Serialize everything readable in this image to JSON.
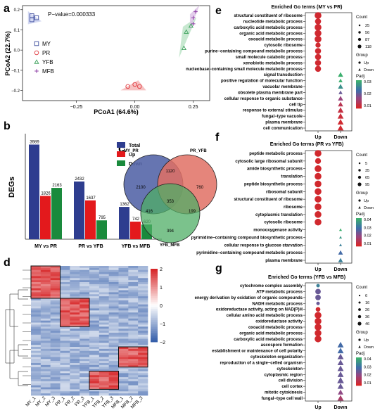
{
  "panels": {
    "a": "a",
    "b": "b",
    "c": "c",
    "d": "d",
    "e": "e",
    "f": "f",
    "g": "g"
  },
  "panel_a": {
    "pvalue": "P−value=0.000333",
    "xlabel": "PCoA1 (64.6%)",
    "ylabel": "PCoA2 (22.7%)",
    "xticks": [
      "−0.25",
      "0.00",
      "0.25"
    ],
    "yticks": [
      "0.2",
      "0.1",
      "0.0",
      "−0.1",
      "−0.2"
    ],
    "legend": [
      {
        "label": "MY",
        "color": "#3a4a9c",
        "shape": "square"
      },
      {
        "label": "PR",
        "color": "#e0393e",
        "shape": "circle"
      },
      {
        "label": "YFB",
        "color": "#3aa05a",
        "shape": "triangle"
      },
      {
        "label": "MFB",
        "color": "#8e3ea5",
        "shape": "plus"
      }
    ]
  },
  "chart_data": [
    {
      "type": "scatter",
      "xlabel": "PCoA1 (64.6%)",
      "ylabel": "PCoA2 (22.7%)",
      "xlim": [
        -0.48,
        0.32
      ],
      "ylim": [
        -0.25,
        0.22
      ],
      "series": [
        {
          "name": "MY",
          "points": [
            [
              -0.44,
              0.17
            ],
            [
              -0.42,
              0.16
            ],
            [
              -0.44,
              0.15
            ]
          ]
        },
        {
          "name": "PR",
          "points": [
            [
              -0.03,
              -0.18
            ],
            [
              0.0,
              -0.17
            ],
            [
              0.02,
              -0.18
            ]
          ]
        },
        {
          "name": "YFB",
          "points": [
            [
              0.22,
              0.09
            ],
            [
              0.24,
              0.12
            ],
            [
              0.21,
              0.01
            ]
          ]
        },
        {
          "name": "MFB",
          "points": [
            [
              0.26,
              0.19
            ],
            [
              0.25,
              0.16
            ],
            [
              0.25,
              0.13
            ]
          ]
        }
      ]
    },
    {
      "type": "bar",
      "ylabel": "DEGs",
      "categories": [
        "MY vs PR",
        "PR vs YFB",
        "YFB vs MFB"
      ],
      "ylim": [
        0,
        4300
      ],
      "series": [
        {
          "name": "Total",
          "color": "#2e3d8f",
          "values": [
            3989,
            2432,
            1362
          ]
        },
        {
          "name": "Up",
          "color": "#e3191c",
          "values": [
            1826,
            1637,
            742
          ]
        },
        {
          "name": "Down",
          "color": "#1a8a3c",
          "values": [
            2163,
            795,
            620
          ]
        }
      ]
    }
  ],
  "venn": {
    "sets": [
      "MY_PR",
      "PR_YFB",
      "YFB_MFB"
    ],
    "regions": {
      "a_only": "2100",
      "b_only": "760",
      "c_only": "394",
      "ab": "1120",
      "ac": "416",
      "bc": "199",
      "abc": "353"
    }
  },
  "heatmap": {
    "columns": [
      "MY_1",
      "MY_2",
      "MY_3",
      "PR_1",
      "PR_2",
      "PR_3",
      "YFB_1",
      "YFB_2",
      "YFB_3",
      "MFB_1",
      "MFB_2",
      "MFB_3"
    ],
    "scale": [
      "2",
      "1",
      "0",
      "−1",
      "−2"
    ]
  },
  "dot_common": {
    "xcats": [
      "Up",
      "Down"
    ],
    "count_title": "Count",
    "group_title": "Group",
    "padj_title": "Padj",
    "group_up": "Up",
    "group_down": "Down"
  },
  "panel_e": {
    "title": "Enriched Go terms (MY vs PR)",
    "count_ticks": [
      "25",
      "56",
      "87",
      "118"
    ],
    "padj_ticks": [
      "0.03",
      "0.02",
      "0.01"
    ],
    "terms": [
      {
        "label": "structural constituent of ribosome",
        "group": "Up",
        "size": 118,
        "padj": 0.001
      },
      {
        "label": "nucleotide metabolic process",
        "group": "Up",
        "size": 87,
        "padj": 0.001
      },
      {
        "label": "carboxylic acid metabolic process",
        "group": "Up",
        "size": 118,
        "padj": 0.001
      },
      {
        "label": "organic acid metabolic process",
        "group": "Up",
        "size": 118,
        "padj": 0.001
      },
      {
        "label": "oxoacid metabolic process",
        "group": "Up",
        "size": 118,
        "padj": 0.001
      },
      {
        "label": "cytosolic ribosome",
        "group": "Up",
        "size": 56,
        "padj": 0.001
      },
      {
        "label": "purine−containing compound metabolic process",
        "group": "Up",
        "size": 87,
        "padj": 0.001
      },
      {
        "label": "small molecule catabolic process",
        "group": "Up",
        "size": 87,
        "padj": 0.001
      },
      {
        "label": "xenobiotic metabolic process",
        "group": "Up",
        "size": 87,
        "padj": 0.001
      },
      {
        "label": "nucleobase−containing small molecule metabolic process",
        "group": "Up",
        "size": 87,
        "padj": 0.001
      },
      {
        "label": "signal transduction",
        "group": "Down",
        "size": 56,
        "padj": 0.03
      },
      {
        "label": "positive regulation of molecular function",
        "group": "Down",
        "size": 25,
        "padj": 0.03
      },
      {
        "label": "vacuolar membrane",
        "group": "Down",
        "size": 56,
        "padj": 0.025
      },
      {
        "label": "obsolete plasma membrane part",
        "group": "Down",
        "size": 25,
        "padj": 0.015
      },
      {
        "label": "cellular response to organic substance",
        "group": "Down",
        "size": 56,
        "padj": 0.01
      },
      {
        "label": "cell tip",
        "group": "Down",
        "size": 56,
        "padj": 0.005
      },
      {
        "label": "response to external stimulus",
        "group": "Down",
        "size": 87,
        "padj": 0.003
      },
      {
        "label": "fungal−type vacuole",
        "group": "Down",
        "size": 87,
        "padj": 0.002
      },
      {
        "label": "plasma membrane",
        "group": "Down",
        "size": 87,
        "padj": 0.001
      },
      {
        "label": "cell communication",
        "group": "Down",
        "size": 87,
        "padj": 0.001
      }
    ]
  },
  "panel_f": {
    "title": "Enriched Go terms (PR vs YFB)",
    "count_ticks": [
      "5",
      "35",
      "65",
      "95"
    ],
    "padj_ticks": [
      "0.04",
      "0.03",
      "0.02",
      "0.01"
    ],
    "terms": [
      {
        "label": "peptide metabolic process",
        "group": "Up",
        "size": 95,
        "padj": 0.001
      },
      {
        "label": "cytosolic large ribosomal subunit",
        "group": "Up",
        "size": 65,
        "padj": 0.001
      },
      {
        "label": "amide biosynthetic process",
        "group": "Up",
        "size": 95,
        "padj": 0.001
      },
      {
        "label": "translation",
        "group": "Up",
        "size": 95,
        "padj": 0.001
      },
      {
        "label": "peptide biosynthetic process",
        "group": "Up",
        "size": 95,
        "padj": 0.001
      },
      {
        "label": "ribosomal subunit",
        "group": "Up",
        "size": 95,
        "padj": 0.001
      },
      {
        "label": "structural constituent of ribosome",
        "group": "Up",
        "size": 95,
        "padj": 0.001
      },
      {
        "label": "ribosome",
        "group": "Up",
        "size": 95,
        "padj": 0.001
      },
      {
        "label": "cytoplasmic translation",
        "group": "Up",
        "size": 95,
        "padj": 0.001
      },
      {
        "label": "cytosolic ribosome",
        "group": "Up",
        "size": 95,
        "padj": 0.001
      },
      {
        "label": "monooxygenase activity",
        "group": "Down",
        "size": 5,
        "padj": 0.04
      },
      {
        "label": "pyrimidine−containing compound biosynthetic process",
        "group": "Down",
        "size": 5,
        "padj": 0.035
      },
      {
        "label": "cellular response to glucose starvation",
        "group": "Down",
        "size": 5,
        "padj": 0.03
      },
      {
        "label": "pyrimidine−containing compound metabolic process",
        "group": "Down",
        "size": 35,
        "padj": 0.025
      },
      {
        "label": "plasma membrane",
        "group": "Down",
        "size": 35,
        "padj": 0.03
      }
    ]
  },
  "panel_g": {
    "title": "Enriched Go terms (YFB vs MFB)",
    "count_ticks": [
      "6",
      "16",
      "26",
      "36",
      "46"
    ],
    "padj_ticks": [
      "0.04",
      "0.03",
      "0.02",
      "0.01"
    ],
    "terms": [
      {
        "label": "cytochrome complex assembly",
        "group": "Up",
        "size": 6,
        "padj": 0.03
      },
      {
        "label": "ATP metabolic process",
        "group": "Up",
        "size": 26,
        "padj": 0.02
      },
      {
        "label": "energy derivation by oxidation of organic compounds",
        "group": "Up",
        "size": 26,
        "padj": 0.02
      },
      {
        "label": "NADH metabolic process",
        "group": "Up",
        "size": 6,
        "padj": 0.02
      },
      {
        "label": "oxidoreductase activity, acting on NAD(P)H",
        "group": "Up",
        "size": 16,
        "padj": 0.001
      },
      {
        "label": "cellular amino acid metabolic process",
        "group": "Up",
        "size": 46,
        "padj": 0.001
      },
      {
        "label": "oxidoreductase activity",
        "group": "Up",
        "size": 46,
        "padj": 0.001
      },
      {
        "label": "oxoacid metabolic process",
        "group": "Up",
        "size": 46,
        "padj": 0.001
      },
      {
        "label": "organic acid metabolic process",
        "group": "Up",
        "size": 46,
        "padj": 0.001
      },
      {
        "label": "carboxylic acid metabolic process",
        "group": "Up",
        "size": 46,
        "padj": 0.001
      },
      {
        "label": "ascospore formation",
        "group": "Down",
        "size": 36,
        "padj": 0.025
      },
      {
        "label": "establishment or maintenance of cell polarity",
        "group": "Down",
        "size": 36,
        "padj": 0.025
      },
      {
        "label": "cytoskeleton organization",
        "group": "Down",
        "size": 36,
        "padj": 0.02
      },
      {
        "label": "reproduction of a single−celled organism",
        "group": "Down",
        "size": 36,
        "padj": 0.02
      },
      {
        "label": "cytoskeleton",
        "group": "Down",
        "size": 36,
        "padj": 0.02
      },
      {
        "label": "cytoplasmic region",
        "group": "Down",
        "size": 36,
        "padj": 0.02
      },
      {
        "label": "cell division",
        "group": "Down",
        "size": 46,
        "padj": 0.02
      },
      {
        "label": "cell cortex",
        "group": "Down",
        "size": 36,
        "padj": 0.02
      },
      {
        "label": "mitotic cytokinesis",
        "group": "Down",
        "size": 26,
        "padj": 0.015
      },
      {
        "label": "fungal−type cell wall",
        "group": "Down",
        "size": 36,
        "padj": 0.01
      }
    ]
  }
}
